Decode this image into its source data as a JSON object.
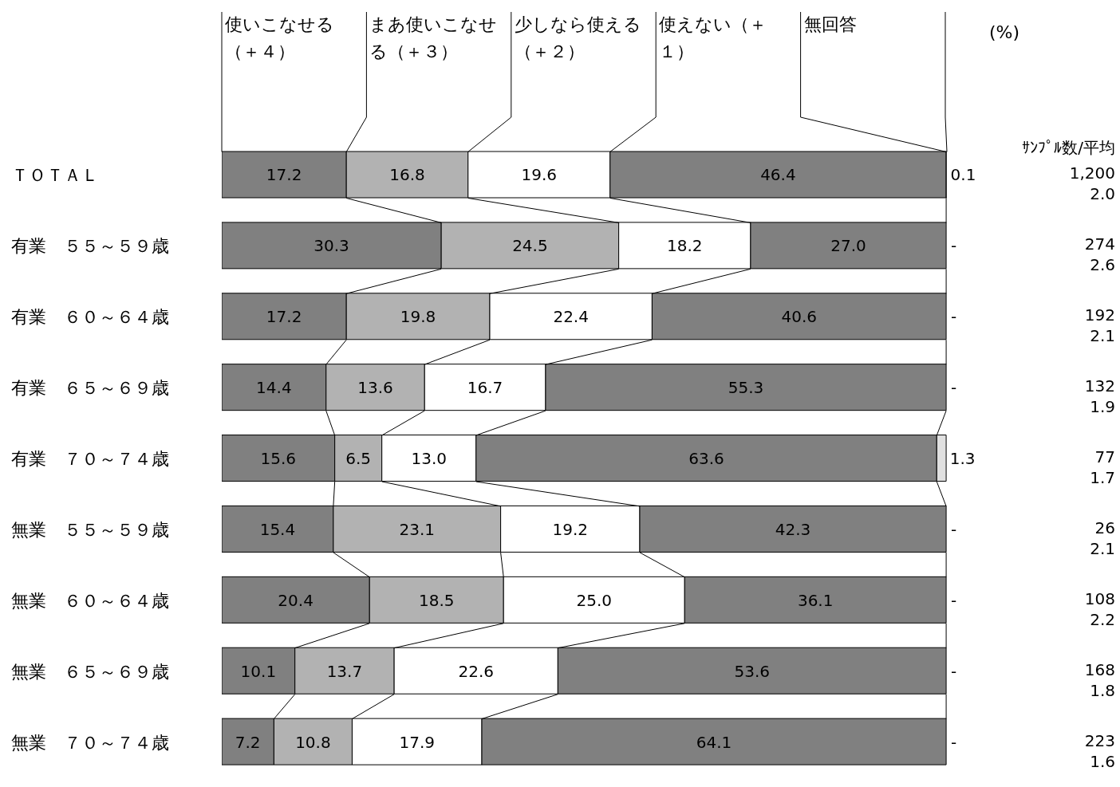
{
  "chart_data": {
    "type": "bar",
    "orientation": "horizontal",
    "stacked": true,
    "legend": "top",
    "categories": [
      "ＴＯＴＡＬ",
      "有業　５５～５９歳",
      "有業　６０～６４歳",
      "有業　６５～６９歳",
      "有業　７０～７４歳",
      "無業　５５～５９歳",
      "無業　６０～６４歳",
      "無業　６５～６９歳",
      "無業　７０～７４歳"
    ],
    "series": [
      {
        "name": "使いこなせる（＋４）",
        "color": "#808080",
        "values": [
          17.2,
          30.3,
          17.2,
          14.4,
          15.6,
          15.4,
          20.4,
          10.1,
          7.2
        ],
        "value_labels": [
          "17.2",
          "30.3",
          "17.2",
          "14.4",
          "15.6",
          "15.4",
          "20.4",
          "10.1",
          "7.2"
        ]
      },
      {
        "name": "まあ使いこなせる（＋３）",
        "color": "#b2b2b2",
        "values": [
          16.8,
          24.5,
          19.8,
          13.6,
          6.5,
          23.1,
          18.5,
          13.7,
          10.8
        ],
        "value_labels": [
          "16.8",
          "24.5",
          "19.8",
          "13.6",
          "6.5",
          "23.1",
          "18.5",
          "13.7",
          "10.8"
        ]
      },
      {
        "name": "少しなら使える（＋２）",
        "color": "#ffffff",
        "values": [
          19.6,
          18.2,
          22.4,
          16.7,
          13.0,
          19.2,
          25.0,
          22.6,
          17.9
        ],
        "value_labels": [
          "19.6",
          "18.2",
          "22.4",
          "16.7",
          "13.0",
          "19.2",
          "25.0",
          "22.6",
          "17.9"
        ]
      },
      {
        "name": "使えない（＋１）",
        "color": "#808080",
        "values": [
          46.4,
          27.0,
          40.6,
          55.3,
          63.6,
          42.3,
          36.1,
          53.6,
          64.1
        ],
        "value_labels": [
          "46.4",
          "27.0",
          "40.6",
          "55.3",
          "63.6",
          "42.3",
          "36.1",
          "53.6",
          "64.1"
        ]
      },
      {
        "name": "無回答",
        "color": "#e0e0e0",
        "values": [
          0.1,
          0,
          0,
          0,
          1.3,
          0,
          0,
          0,
          0
        ],
        "value_labels": [
          "0.1",
          "-",
          "-",
          "-",
          "1.3",
          "-",
          "-",
          "-",
          "-"
        ]
      }
    ],
    "annotations": [
      "(%)",
      "ｻﾝﾌﾟﾙ数/平均",
      "1,200",
      "2.0",
      "274",
      "2.6",
      "192",
      "2.1",
      "132",
      "1.9",
      "77",
      "1.7",
      "26",
      "2.1",
      "108",
      "2.2",
      "168",
      "1.8",
      "223",
      "1.6"
    ]
  }
}
